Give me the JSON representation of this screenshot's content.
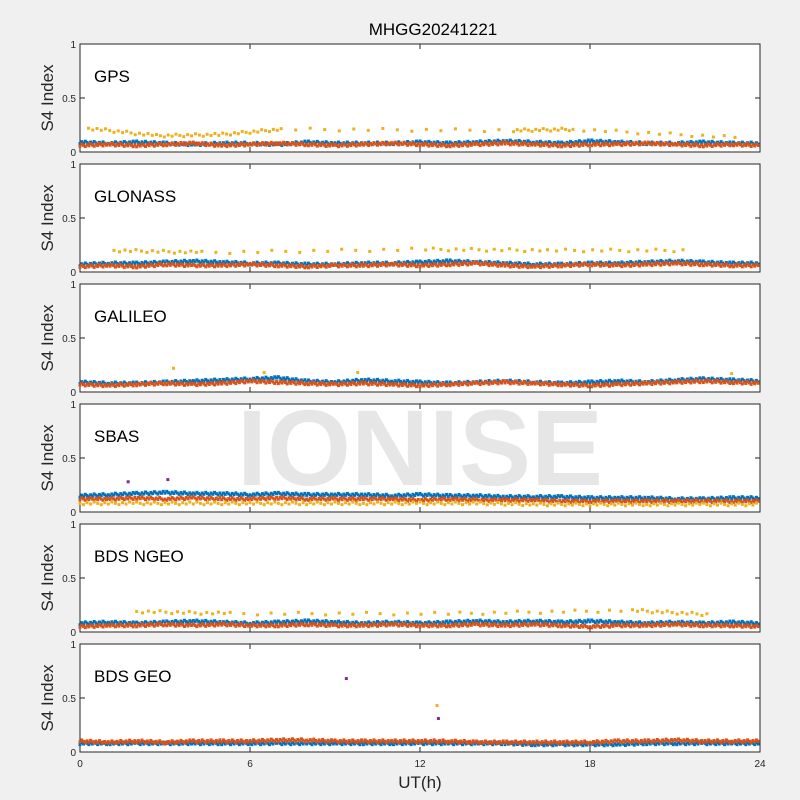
{
  "figure": {
    "title": "MHGG20241221",
    "xlabel": "UT(h)",
    "ylabel": "S4 Index",
    "watermark": "IONISE"
  },
  "chart_data": {
    "type": "scatter",
    "title": "MHGG20241221",
    "xlabel": "UT(h)",
    "xlim": [
      0,
      24
    ],
    "xticks": [
      0,
      6,
      12,
      18,
      24
    ],
    "ylim": [
      0,
      1
    ],
    "yticks": [
      0,
      0.5,
      1
    ],
    "ytick_labels": [
      "0",
      "0.5",
      "1"
    ],
    "grid": false,
    "colors": [
      "#0072BD",
      "#D95319",
      "#EDB120",
      "#7E2F8E",
      "#77AC30",
      "#4DBEEE",
      "#A2142F"
    ],
    "panels": [
      {
        "constellation": "GPS",
        "ylabel": "S4 Index",
        "series": [
          {
            "x": [
              0,
              1,
              2,
              3,
              4,
              5,
              6,
              7,
              8,
              9,
              10,
              11,
              12,
              13,
              14,
              15,
              16,
              17,
              18,
              19,
              20,
              21,
              22,
              23,
              24
            ],
            "y": [
              0.09,
              0.08,
              0.09,
              0.08,
              0.07,
              0.08,
              0.08,
              0.07,
              0.09,
              0.08,
              0.08,
              0.08,
              0.09,
              0.08,
              0.09,
              0.1,
              0.09,
              0.08,
              0.1,
              0.09,
              0.08,
              0.08,
              0.09,
              0.08,
              0.08
            ]
          },
          {
            "x": [
              0,
              1,
              2,
              3,
              4,
              5,
              6,
              7,
              8,
              9,
              10,
              11,
              12,
              13,
              14,
              15,
              16,
              17,
              18,
              19,
              20,
              21,
              22,
              23,
              24
            ],
            "y": [
              0.06,
              0.07,
              0.06,
              0.07,
              0.08,
              0.06,
              0.07,
              0.08,
              0.07,
              0.06,
              0.07,
              0.08,
              0.07,
              0.06,
              0.07,
              0.08,
              0.07,
              0.06,
              0.07,
              0.07,
              0.08,
              0.07,
              0.06,
              0.07,
              0.06
            ]
          },
          {
            "x": [
              0.3,
              2.7,
              4.9,
              7.1,
              15.3,
              17.4,
              23.5
            ],
            "y": [
              0.22,
              0.15,
              0.16,
              0.21,
              0.2,
              0.21,
              0.13
            ]
          }
        ]
      },
      {
        "constellation": "GLONASS",
        "ylabel": "S4 Index",
        "series": [
          {
            "x": [
              0,
              1,
              2,
              3,
              4,
              5,
              6,
              7,
              8,
              9,
              10,
              11,
              12,
              13,
              14,
              15,
              16,
              17,
              18,
              19,
              20,
              21,
              22,
              23,
              24
            ],
            "y": [
              0.07,
              0.08,
              0.08,
              0.09,
              0.1,
              0.09,
              0.08,
              0.08,
              0.07,
              0.07,
              0.08,
              0.08,
              0.09,
              0.1,
              0.09,
              0.08,
              0.07,
              0.07,
              0.08,
              0.08,
              0.09,
              0.1,
              0.09,
              0.08,
              0.08
            ]
          },
          {
            "x": [
              0,
              1,
              2,
              3,
              4,
              5,
              6,
              7,
              8,
              9,
              10,
              11,
              12,
              13,
              14,
              15,
              16,
              17,
              18,
              19,
              20,
              21,
              22,
              23,
              24
            ],
            "y": [
              0.05,
              0.06,
              0.05,
              0.07,
              0.06,
              0.06,
              0.07,
              0.06,
              0.05,
              0.06,
              0.06,
              0.07,
              0.06,
              0.07,
              0.08,
              0.06,
              0.05,
              0.06,
              0.07,
              0.06,
              0.07,
              0.08,
              0.07,
              0.06,
              0.06
            ]
          },
          {
            "x": [
              1.2,
              4.3,
              12.2,
              16.5,
              21.6
            ],
            "y": [
              0.2,
              0.18,
              0.21,
              0.2,
              0.2
            ]
          }
        ]
      },
      {
        "constellation": "GALILEO",
        "ylabel": "S4 Index",
        "series": [
          {
            "x": [
              0,
              1,
              2,
              3,
              4,
              5,
              6,
              7,
              8,
              9,
              10,
              11,
              12,
              13,
              14,
              15,
              16,
              17,
              18,
              19,
              20,
              21,
              22,
              23,
              24
            ],
            "y": [
              0.09,
              0.08,
              0.08,
              0.09,
              0.1,
              0.11,
              0.12,
              0.13,
              0.1,
              0.09,
              0.11,
              0.1,
              0.09,
              0.08,
              0.09,
              0.1,
              0.09,
              0.08,
              0.09,
              0.1,
              0.09,
              0.11,
              0.12,
              0.11,
              0.1
            ]
          },
          {
            "x": [
              0,
              1,
              2,
              3,
              4,
              5,
              6,
              7,
              8,
              9,
              10,
              11,
              12,
              13,
              14,
              15,
              16,
              17,
              18,
              19,
              20,
              21,
              22,
              23,
              24
            ],
            "y": [
              0.07,
              0.06,
              0.07,
              0.08,
              0.07,
              0.08,
              0.1,
              0.09,
              0.08,
              0.07,
              0.08,
              0.07,
              0.06,
              0.07,
              0.08,
              0.09,
              0.08,
              0.07,
              0.06,
              0.07,
              0.08,
              0.09,
              0.1,
              0.09,
              0.08
            ]
          },
          {
            "x": [
              3.3,
              6.5,
              9.8,
              23.0
            ],
            "y": [
              0.22,
              0.18,
              0.18,
              0.17
            ]
          }
        ]
      },
      {
        "constellation": "SBAS",
        "ylabel": "S4 Index",
        "series": [
          {
            "x": [
              0,
              1,
              2,
              3,
              4,
              5,
              6,
              7,
              8,
              9,
              10,
              11,
              12,
              13,
              14,
              15,
              16,
              17,
              18,
              19,
              20,
              21,
              22,
              23,
              24
            ],
            "y": [
              0.15,
              0.16,
              0.17,
              0.18,
              0.17,
              0.17,
              0.16,
              0.17,
              0.16,
              0.16,
              0.16,
              0.15,
              0.16,
              0.15,
              0.15,
              0.14,
              0.14,
              0.14,
              0.13,
              0.13,
              0.13,
              0.12,
              0.12,
              0.13,
              0.13
            ]
          },
          {
            "x": [
              0,
              1,
              2,
              3,
              4,
              5,
              6,
              7,
              8,
              9,
              10,
              11,
              12,
              13,
              14,
              15,
              16,
              17,
              18,
              19,
              20,
              21,
              22,
              23,
              24
            ],
            "y": [
              0.12,
              0.12,
              0.13,
              0.12,
              0.13,
              0.12,
              0.12,
              0.13,
              0.12,
              0.12,
              0.12,
              0.12,
              0.11,
              0.12,
              0.11,
              0.11,
              0.11,
              0.1,
              0.1,
              0.1,
              0.1,
              0.1,
              0.1,
              0.1,
              0.1
            ]
          },
          {
            "x": [
              0,
              2,
              4,
              6,
              8,
              10,
              12,
              14,
              16,
              18,
              20,
              22,
              24
            ],
            "y": [
              0.08,
              0.08,
              0.08,
              0.08,
              0.08,
              0.08,
              0.08,
              0.08,
              0.07,
              0.07,
              0.07,
              0.07,
              0.07
            ]
          },
          {
            "x": [
              1.7,
              3.1
            ],
            "y": [
              0.28,
              0.3
            ]
          }
        ]
      },
      {
        "constellation": "BDS NGEO",
        "ylabel": "S4 Index",
        "series": [
          {
            "x": [
              0,
              1,
              2,
              3,
              4,
              5,
              6,
              7,
              8,
              9,
              10,
              11,
              12,
              13,
              14,
              15,
              16,
              17,
              18,
              19,
              20,
              21,
              22,
              23,
              24
            ],
            "y": [
              0.08,
              0.09,
              0.08,
              0.09,
              0.1,
              0.09,
              0.08,
              0.09,
              0.1,
              0.09,
              0.08,
              0.09,
              0.08,
              0.09,
              0.1,
              0.09,
              0.1,
              0.09,
              0.1,
              0.09,
              0.08,
              0.09,
              0.08,
              0.09,
              0.08
            ]
          },
          {
            "x": [
              0,
              1,
              2,
              3,
              4,
              5,
              6,
              7,
              8,
              9,
              10,
              11,
              12,
              13,
              14,
              15,
              16,
              17,
              18,
              19,
              20,
              21,
              22,
              23,
              24
            ],
            "y": [
              0.05,
              0.06,
              0.06,
              0.07,
              0.06,
              0.07,
              0.06,
              0.06,
              0.07,
              0.06,
              0.06,
              0.07,
              0.06,
              0.06,
              0.07,
              0.06,
              0.07,
              0.06,
              0.05,
              0.06,
              0.06,
              0.07,
              0.06,
              0.06,
              0.05
            ]
          },
          {
            "x": [
              2.0,
              5.3,
              13.0,
              19.5,
              22.3
            ],
            "y": [
              0.19,
              0.17,
              0.17,
              0.2,
              0.16
            ]
          }
        ]
      },
      {
        "constellation": "BDS GEO",
        "ylabel": "S4 Index",
        "series": [
          {
            "x": [
              0,
              1,
              2,
              3,
              4,
              5,
              6,
              7,
              8,
              9,
              10,
              11,
              12,
              13,
              14,
              15,
              16,
              17,
              18,
              19,
              20,
              21,
              22,
              23,
              24
            ],
            "y": [
              0.08,
              0.08,
              0.08,
              0.08,
              0.08,
              0.08,
              0.08,
              0.08,
              0.08,
              0.08,
              0.08,
              0.08,
              0.08,
              0.08,
              0.08,
              0.08,
              0.07,
              0.07,
              0.07,
              0.07,
              0.08,
              0.08,
              0.08,
              0.08,
              0.08
            ]
          },
          {
            "x": [
              0,
              1,
              2,
              3,
              4,
              5,
              6,
              7,
              8,
              9,
              10,
              11,
              12,
              13,
              14,
              15,
              16,
              17,
              18,
              19,
              20,
              21,
              22,
              23,
              24
            ],
            "y": [
              0.1,
              0.09,
              0.1,
              0.09,
              0.1,
              0.1,
              0.1,
              0.11,
              0.11,
              0.1,
              0.1,
              0.1,
              0.1,
              0.1,
              0.09,
              0.09,
              0.09,
              0.09,
              0.09,
              0.1,
              0.1,
              0.11,
              0.1,
              0.1,
              0.1
            ]
          },
          {
            "x": [
              12.6
            ],
            "y": [
              0.43
            ]
          },
          {
            "x": [
              9.4,
              12.65
            ],
            "y": [
              0.68,
              0.31
            ]
          }
        ]
      }
    ]
  }
}
